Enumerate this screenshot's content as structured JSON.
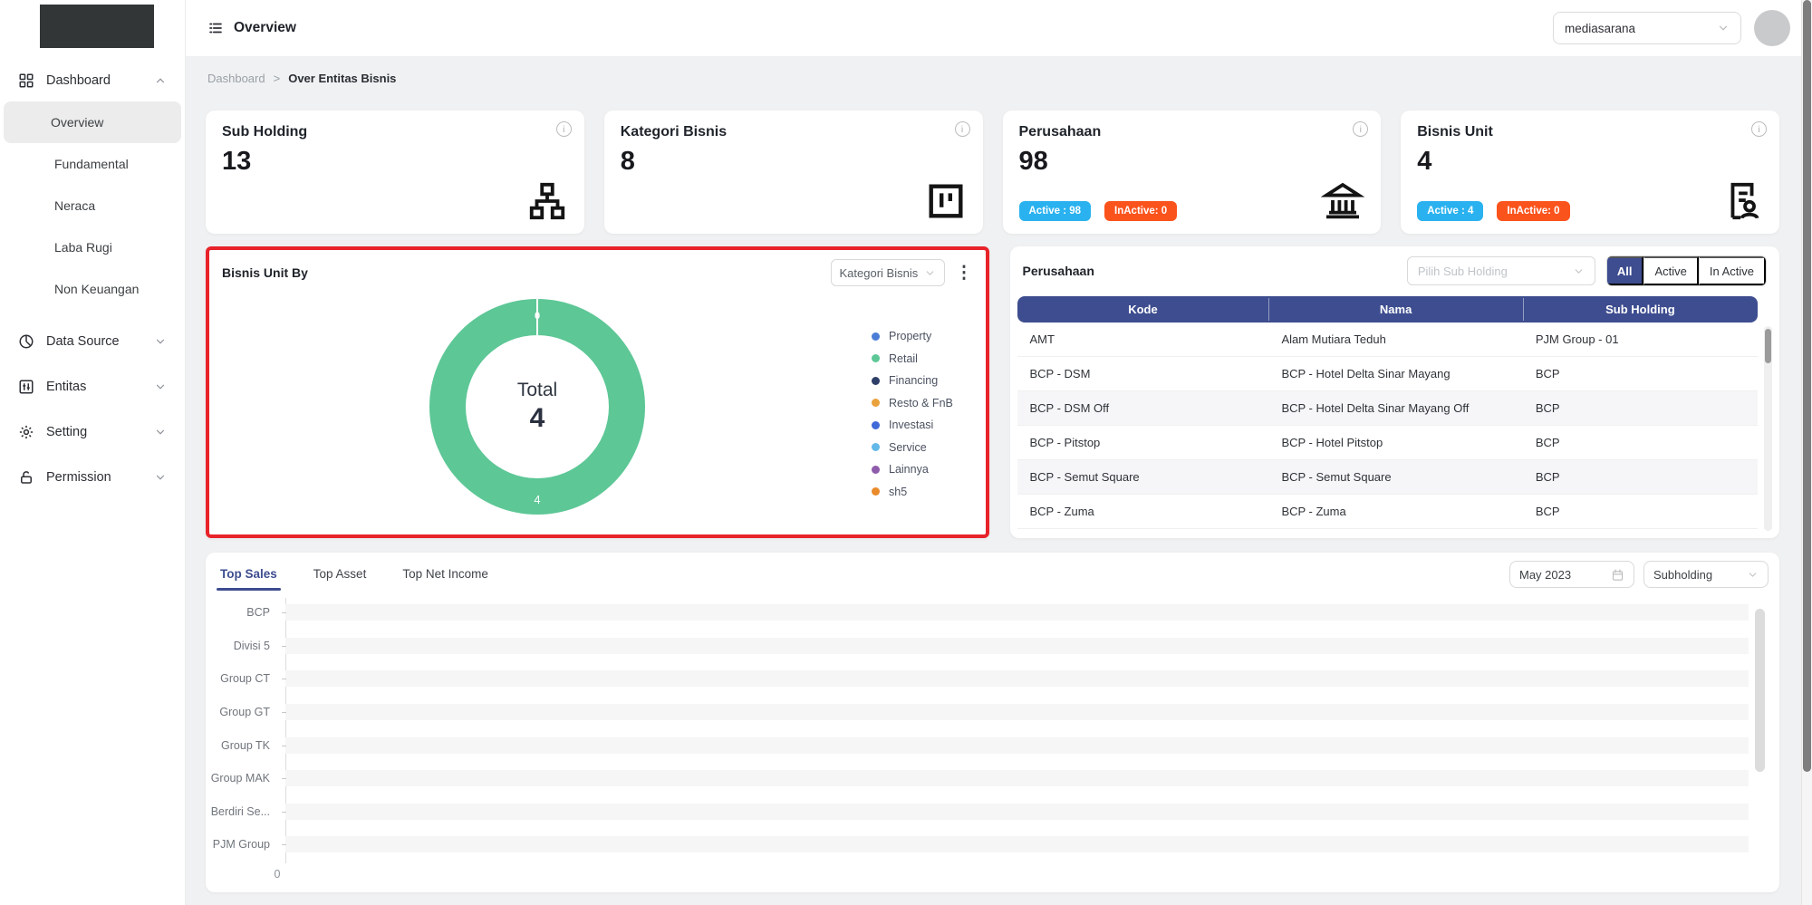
{
  "topbar": {
    "title": "Overview",
    "tenant_selector": "mediasarana"
  },
  "breadcrumb": {
    "items": [
      "Dashboard",
      "Over Entitas Bisnis"
    ],
    "separator": ">"
  },
  "sidebar": {
    "groups": [
      {
        "label": "Dashboard",
        "icon": "grid-icon",
        "state": "expanded",
        "children": [
          {
            "label": "Overview",
            "active": true
          },
          {
            "label": "Fundamental",
            "active": false
          },
          {
            "label": "Neraca",
            "active": false
          },
          {
            "label": "Laba Rugi",
            "active": false
          },
          {
            "label": "Non Keuangan",
            "active": false
          }
        ]
      },
      {
        "label": "Data Source",
        "icon": "pie-icon",
        "state": "collapsed",
        "children": []
      },
      {
        "label": "Entitas",
        "icon": "sliders-icon",
        "state": "collapsed",
        "children": []
      },
      {
        "label": "Setting",
        "icon": "gear-icon",
        "state": "collapsed",
        "children": []
      },
      {
        "label": "Permission",
        "icon": "lock-icon",
        "state": "collapsed",
        "children": []
      }
    ]
  },
  "stat_cards": [
    {
      "title": "Sub Holding",
      "value": "13",
      "icon": "sitemap-icon",
      "badges": []
    },
    {
      "title": "Kategori Bisnis",
      "value": "8",
      "icon": "kanban-icon",
      "badges": []
    },
    {
      "title": "Perusahaan",
      "value": "98",
      "icon": "bank-icon",
      "badges": [
        {
          "label": "Active : 98",
          "color": "#29b2ef"
        },
        {
          "label": "InActive: 0",
          "color": "#fb531c"
        }
      ]
    },
    {
      "title": "Bisnis Unit",
      "value": "4",
      "icon": "file-user-icon",
      "badges": [
        {
          "label": "Active : 4",
          "color": "#29b2ef"
        },
        {
          "label": "InActive: 0",
          "color": "#fb531c"
        }
      ]
    }
  ],
  "bisnis_unit_by": {
    "title": "Bisnis Unit By",
    "filter_value": "Kategori Bisnis",
    "highlighted": true
  },
  "perusahaan": {
    "title": "Perusahaan",
    "filter_placeholder": "Pilih Sub Holding",
    "status_filters": [
      "All",
      "Active",
      "In Active"
    ],
    "active_filter": "All",
    "table": {
      "columns": [
        "Kode",
        "Nama",
        "Sub Holding"
      ],
      "rows": [
        [
          "AMT",
          "Alam Mutiara Teduh",
          "PJM Group - 01"
        ],
        [
          "BCP - DSM",
          "BCP - Hotel Delta Sinar Mayang",
          "BCP"
        ],
        [
          "BCP - DSM Off",
          "BCP - Hotel Delta Sinar Mayang Off",
          "BCP"
        ],
        [
          "BCP - Pitstop",
          "BCP - Hotel Pitstop",
          "BCP"
        ],
        [
          "BCP - Semut Square",
          "BCP - Semut Square",
          "BCP"
        ],
        [
          "BCP - Zuma",
          "BCP - Zuma",
          "BCP"
        ]
      ]
    }
  },
  "bottom_panel": {
    "tabs": [
      "Top Sales",
      "Top Asset",
      "Top Net Income"
    ],
    "active_tab": "Top Sales",
    "period": "May 2023",
    "scope": "Subholding"
  },
  "chart_data": [
    {
      "type": "pie",
      "title": "Bisnis Unit By Kategori Bisnis",
      "center_label": "Total",
      "center_value": "4",
      "labels": [
        "Property",
        "Retail",
        "Financing",
        "Resto & FnB",
        "Investasi",
        "Service",
        "Lainnya",
        "sh5"
      ],
      "values": [
        0,
        4,
        0,
        0,
        0,
        0,
        0,
        0
      ],
      "colors": [
        "#4a7dd6",
        "#5dc796",
        "#2e3f68",
        "#e9a23b",
        "#3f6ad8",
        "#62b8e8",
        "#8f5bab",
        "#e98a2b"
      ],
      "segment_labels": {
        "top": "0",
        "bottom": "4"
      },
      "legend_position": "right",
      "donut_color": "#5dc796"
    },
    {
      "type": "bar",
      "orientation": "horizontal",
      "title": "Top Sales",
      "categories": [
        "BCP",
        "Divisi 5",
        "Group CT",
        "Group GT",
        "Group TK",
        "Group MAK",
        "Berdiri Se...",
        "PJM Group"
      ],
      "values": [
        0,
        0,
        0,
        0,
        0,
        0,
        0,
        0
      ],
      "x_ticks": [
        "0"
      ],
      "xlim": [
        0,
        null
      ],
      "grid": false
    }
  ],
  "colors": {
    "accent_navy": "#3d4d8f",
    "donut_green": "#5dc796",
    "badge_active": "#29b2ef",
    "badge_inactive": "#fb531c",
    "highlight_red": "#e8232a",
    "sidebar_active_bg": "#ececec"
  }
}
